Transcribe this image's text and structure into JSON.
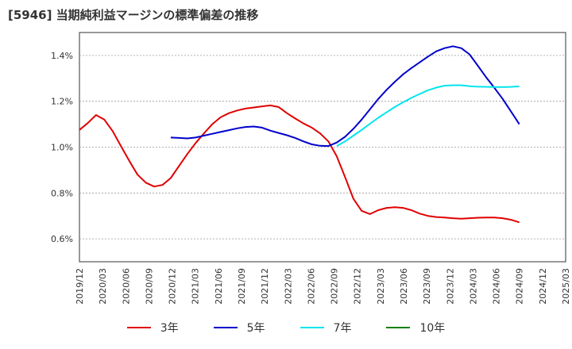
{
  "title": "[5946]  当期純利益マージンの標準偏差の推移",
  "chart_data": {
    "type": "line",
    "title": "[5946]  当期純利益マージンの標準偏差の推移",
    "xlabel": "",
    "ylabel": "",
    "x_ticks": [
      "2019/12",
      "2020/03",
      "2020/06",
      "2020/09",
      "2020/12",
      "2021/03",
      "2021/06",
      "2021/09",
      "2021/12",
      "2022/03",
      "2022/06",
      "2022/09",
      "2022/12",
      "2023/03",
      "2023/06",
      "2023/09",
      "2023/12",
      "2024/03",
      "2024/06",
      "2024/09",
      "2024/12",
      "2025/03"
    ],
    "y_ticks": [
      0.6,
      0.8,
      1.0,
      1.2,
      1.4
    ],
    "y_tick_labels": [
      "0.6%",
      "0.8%",
      "1.0%",
      "1.2%",
      "1.4%"
    ],
    "ylim": [
      0.5,
      1.5
    ],
    "grid": true,
    "legend_position": "bottom",
    "series": [
      {
        "name": "3年",
        "color": "#e00000",
        "values": [
          1.075,
          1.105,
          1.14,
          1.12,
          1.07,
          1.005,
          0.94,
          0.88,
          0.845,
          0.828,
          0.835,
          0.865,
          0.918,
          0.97,
          1.018,
          1.06,
          1.1,
          1.13,
          1.148,
          1.16,
          1.168,
          1.173,
          1.178,
          1.182,
          1.175,
          1.148,
          1.125,
          1.103,
          1.085,
          1.06,
          1.025,
          0.96,
          0.87,
          0.775,
          0.722,
          0.708,
          0.725,
          0.735,
          0.738,
          0.735,
          0.725,
          0.71,
          0.7,
          0.695,
          0.693,
          0.69,
          0.688,
          0.69,
          0.692,
          0.693,
          0.693,
          0.69,
          0.683,
          0.672
        ]
      },
      {
        "name": "5年",
        "color": "#0000cc",
        "values": [
          null,
          null,
          null,
          null,
          null,
          null,
          null,
          null,
          null,
          null,
          null,
          1.042,
          1.04,
          1.038,
          1.042,
          1.05,
          1.058,
          1.066,
          1.074,
          1.082,
          1.088,
          1.09,
          1.085,
          1.072,
          1.062,
          1.052,
          1.04,
          1.025,
          1.012,
          1.006,
          1.005,
          1.02,
          1.045,
          1.08,
          1.12,
          1.165,
          1.21,
          1.25,
          1.285,
          1.318,
          1.345,
          1.37,
          1.395,
          1.418,
          1.432,
          1.44,
          1.432,
          1.405,
          1.355,
          1.305,
          1.258,
          1.21,
          1.155,
          1.1
        ]
      },
      {
        "name": "7年",
        "color": "#00e5ee",
        "values": [
          null,
          null,
          null,
          null,
          null,
          null,
          null,
          null,
          null,
          null,
          null,
          null,
          null,
          null,
          null,
          null,
          null,
          null,
          null,
          null,
          null,
          null,
          null,
          null,
          null,
          null,
          null,
          null,
          null,
          null,
          null,
          1.005,
          1.025,
          1.05,
          1.075,
          1.102,
          1.128,
          1.152,
          1.175,
          1.196,
          1.215,
          1.232,
          1.248,
          1.26,
          1.268,
          1.27,
          1.27,
          1.266,
          1.264,
          1.263,
          1.262,
          1.262,
          1.263,
          1.265
        ]
      },
      {
        "name": "10年",
        "color": "#008000",
        "values": []
      }
    ]
  }
}
